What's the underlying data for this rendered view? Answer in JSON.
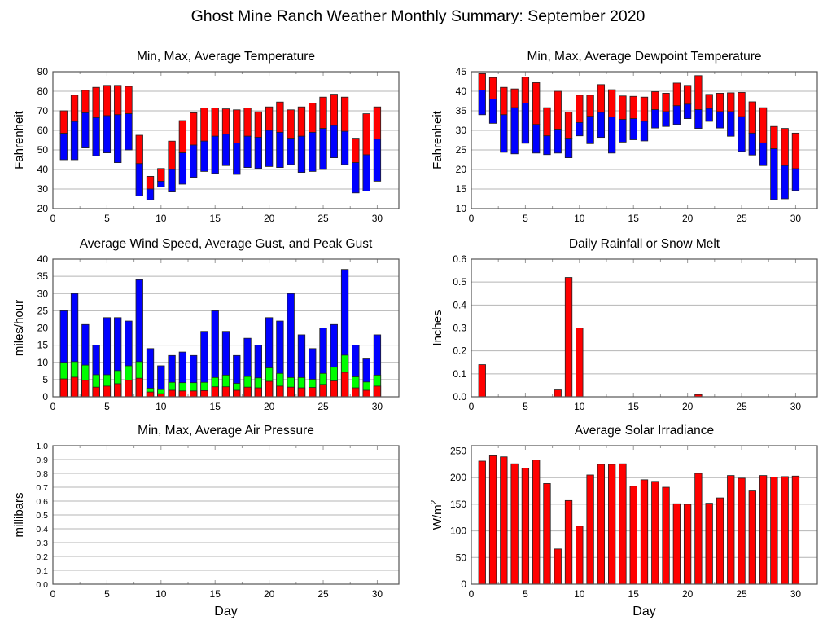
{
  "page_title": "Ghost Mine Ranch Weather Monthly Summary: September 2020",
  "colors": {
    "red": "#ff0000",
    "blue": "#0000ff",
    "green": "#00ff00",
    "grid": "#b4b4b4",
    "axis": "#555555"
  },
  "chart_data": [
    {
      "id": "temperature",
      "type": "bar",
      "subtype": "floating-range",
      "title": "Min, Max, Average Temperature",
      "xlabel": "",
      "ylabel": "Fahrenheit",
      "xlim": [
        0,
        32
      ],
      "ylim": [
        20,
        90
      ],
      "xticks": [
        0,
        5,
        10,
        15,
        20,
        25,
        30
      ],
      "yticks": [
        20,
        30,
        40,
        50,
        60,
        70,
        80,
        90
      ],
      "grid": true,
      "x": [
        1,
        2,
        3,
        4,
        5,
        6,
        7,
        8,
        9,
        10,
        11,
        12,
        13,
        14,
        15,
        16,
        17,
        18,
        19,
        20,
        21,
        22,
        23,
        24,
        25,
        26,
        27,
        28,
        29,
        30
      ],
      "series": [
        {
          "name": "Max",
          "color": "#ff0000",
          "values": [
            70,
            78,
            80.5,
            82,
            83,
            83,
            82.5,
            57.5,
            36.5,
            40.5,
            54.5,
            65,
            69,
            71.5,
            71.5,
            71,
            70.5,
            71.5,
            69.5,
            72,
            74.5,
            70.5,
            72,
            74,
            77,
            78.5,
            77,
            56,
            68.5,
            72
          ]
        },
        {
          "name": "Average",
          "color": "#0000ff",
          "values": [
            58.5,
            64.5,
            69,
            66.5,
            67.5,
            68,
            68.5,
            43,
            30,
            34,
            40,
            48.5,
            52.5,
            54.5,
            57,
            58,
            53.5,
            57,
            56.5,
            60,
            59,
            56,
            57,
            59,
            61,
            62.5,
            59.5,
            43.5,
            47.5,
            55.5
          ]
        },
        {
          "name": "Min",
          "color": "#0000ff",
          "values": [
            45,
            45,
            51,
            47,
            48.5,
            43.5,
            50,
            26.5,
            24.5,
            31,
            28.5,
            32.5,
            36,
            39,
            38,
            42,
            37.5,
            41,
            40.5,
            41.5,
            41,
            42.5,
            38.5,
            39,
            40,
            46,
            42.5,
            28,
            29,
            34
          ]
        }
      ]
    },
    {
      "id": "dewpoint",
      "type": "bar",
      "subtype": "floating-range",
      "title": "Min, Max, Average Dewpoint Temperature",
      "xlabel": "",
      "ylabel": "Fahrenheit",
      "xlim": [
        0,
        32
      ],
      "ylim": [
        10,
        45
      ],
      "xticks": [
        0,
        5,
        10,
        15,
        20,
        25,
        30
      ],
      "yticks": [
        10,
        15,
        20,
        25,
        30,
        35,
        40,
        45
      ],
      "grid": true,
      "x": [
        1,
        2,
        3,
        4,
        5,
        6,
        7,
        8,
        9,
        10,
        11,
        12,
        13,
        14,
        15,
        16,
        17,
        18,
        19,
        20,
        21,
        22,
        23,
        24,
        25,
        26,
        27,
        28,
        29,
        30
      ],
      "series": [
        {
          "name": "Max",
          "color": "#ff0000",
          "values": [
            44.5,
            43.5,
            41,
            40.6,
            43.6,
            42.2,
            35.8,
            40,
            34.7,
            39,
            39,
            41.7,
            40.4,
            38.8,
            38.7,
            38.5,
            39.9,
            39.5,
            42.1,
            41.5,
            44,
            39.2,
            39.5,
            39.6,
            39.7,
            37.3,
            35.8,
            31,
            30.5,
            29.3
          ]
        },
        {
          "name": "Average",
          "color": "#0000ff",
          "values": [
            40.3,
            38,
            34,
            35.8,
            37,
            31.5,
            28.6,
            30.3,
            28,
            32,
            33.6,
            34.6,
            33.4,
            32.8,
            33,
            32.3,
            35.3,
            34.8,
            36.3,
            36.7,
            35.3,
            35.6,
            34.8,
            34.8,
            33.5,
            29.3,
            26.8,
            25.3,
            21,
            20.2
          ]
        },
        {
          "name": "Min",
          "color": "#0000ff",
          "values": [
            34,
            31.8,
            24.4,
            24,
            26.7,
            24.2,
            23.8,
            24.2,
            23,
            28.6,
            26.6,
            28.2,
            24.2,
            27,
            27.6,
            27.3,
            30.6,
            31,
            31.5,
            33,
            30.5,
            32.3,
            30.6,
            28.5,
            24.6,
            23.7,
            21,
            12.3,
            12.5,
            14.6
          ]
        }
      ]
    },
    {
      "id": "wind",
      "type": "bar",
      "subtype": "overlaid",
      "title": "Average Wind Speed, Average Gust, and Peak Gust",
      "xlabel": "",
      "ylabel": "miles/hour",
      "xlim": [
        0,
        32
      ],
      "ylim": [
        0,
        40
      ],
      "xticks": [
        0,
        5,
        10,
        15,
        20,
        25,
        30
      ],
      "yticks": [
        0,
        5,
        10,
        15,
        20,
        25,
        30,
        35,
        40
      ],
      "grid": true,
      "x": [
        1,
        2,
        3,
        4,
        5,
        6,
        7,
        8,
        9,
        10,
        11,
        12,
        13,
        14,
        15,
        16,
        17,
        18,
        19,
        20,
        21,
        22,
        23,
        24,
        25,
        26,
        27,
        28,
        29,
        30
      ],
      "series": [
        {
          "name": "Peak Gust",
          "color": "#0000ff",
          "values": [
            25,
            30,
            21,
            15,
            23,
            23,
            22,
            34,
            14,
            9,
            12,
            13,
            12,
            19,
            25,
            19,
            12,
            17,
            15,
            23,
            22,
            30,
            18,
            14,
            20,
            21,
            37,
            15,
            11,
            18
          ]
        },
        {
          "name": "Average Gust",
          "color": "#00ff00",
          "values": [
            10,
            10.2,
            9.2,
            6.4,
            6.4,
            7.6,
            9,
            10.2,
            2.5,
            2.1,
            4.2,
            4.1,
            4.1,
            4.2,
            5.6,
            6.3,
            3.9,
            5.9,
            5.5,
            8.4,
            6.8,
            5.6,
            5.6,
            5.1,
            6.8,
            8.6,
            12.1,
            5.8,
            4.3,
            6.3
          ]
        },
        {
          "name": "Average Wind Speed",
          "color": "#ff0000",
          "values": [
            5.2,
            5.7,
            4.8,
            2.8,
            3.1,
            3.8,
            4.8,
            5.4,
            1.4,
            0.9,
            1.9,
            1.7,
            1.7,
            1.8,
            2.9,
            2.9,
            1.9,
            2.8,
            2.6,
            4.5,
            3.1,
            2.8,
            2.6,
            2.7,
            3.6,
            4.6,
            7.1,
            2.6,
            1.9,
            3.1
          ]
        }
      ]
    },
    {
      "id": "rainfall",
      "type": "bar",
      "title": "Daily Rainfall or Snow Melt",
      "xlabel": "",
      "ylabel": "Inches",
      "xlim": [
        0,
        32
      ],
      "ylim": [
        0,
        0.6
      ],
      "xticks": [
        0,
        5,
        10,
        15,
        20,
        25,
        30
      ],
      "yticks": [
        "0.0",
        "0.1",
        "0.2",
        "0.3",
        "0.4",
        "0.5",
        "0.6"
      ],
      "grid": true,
      "x": [
        1,
        2,
        3,
        4,
        5,
        6,
        7,
        8,
        9,
        10,
        11,
        12,
        13,
        14,
        15,
        16,
        17,
        18,
        19,
        20,
        21,
        22,
        23,
        24,
        25,
        26,
        27,
        28,
        29,
        30
      ],
      "series": [
        {
          "name": "Rainfall",
          "color": "#ff0000",
          "values": [
            0.14,
            0,
            0,
            0,
            0,
            0,
            0,
            0.03,
            0.52,
            0.3,
            0,
            0,
            0,
            0,
            0,
            0,
            0,
            0,
            0,
            0,
            0.01,
            0,
            0,
            0,
            0,
            0,
            0,
            0,
            0,
            0
          ]
        }
      ]
    },
    {
      "id": "pressure",
      "type": "bar",
      "title": "Min, Max, Average Air Pressure",
      "xlabel": "Day",
      "ylabel": "millibars",
      "xlim": [
        0,
        32
      ],
      "ylim": [
        0,
        1
      ],
      "xticks": [
        0,
        5,
        10,
        15,
        20,
        25,
        30
      ],
      "yticks": [
        "0.0",
        "0.1",
        "0.2",
        "0.3",
        "0.4",
        "0.5",
        "0.6",
        "0.7",
        "0.8",
        "0.9",
        "1.0"
      ],
      "grid": true,
      "x": [],
      "series": []
    },
    {
      "id": "solar",
      "type": "bar",
      "title": "Average Solar Irradiance",
      "xlabel": "Day",
      "ylabel": "W/m²",
      "xlim": [
        0,
        32
      ],
      "ylim": [
        0,
        260
      ],
      "xticks": [
        0,
        5,
        10,
        15,
        20,
        25,
        30
      ],
      "yticks": [
        0,
        50,
        100,
        150,
        200,
        250
      ],
      "grid": true,
      "x": [
        1,
        2,
        3,
        4,
        5,
        6,
        7,
        8,
        9,
        10,
        11,
        12,
        13,
        14,
        15,
        16,
        17,
        18,
        19,
        20,
        21,
        22,
        23,
        24,
        25,
        26,
        27,
        28,
        29,
        30
      ],
      "series": [
        {
          "name": "Solar Irradiance",
          "color": "#ff0000",
          "values": [
            231,
            241,
            239,
            226,
            218,
            233,
            189,
            66,
            157,
            109,
            205,
            225,
            225,
            226,
            184,
            196,
            193,
            182,
            151,
            150,
            208,
            152,
            162,
            204,
            199,
            175,
            204,
            201,
            202,
            203
          ]
        }
      ]
    }
  ]
}
